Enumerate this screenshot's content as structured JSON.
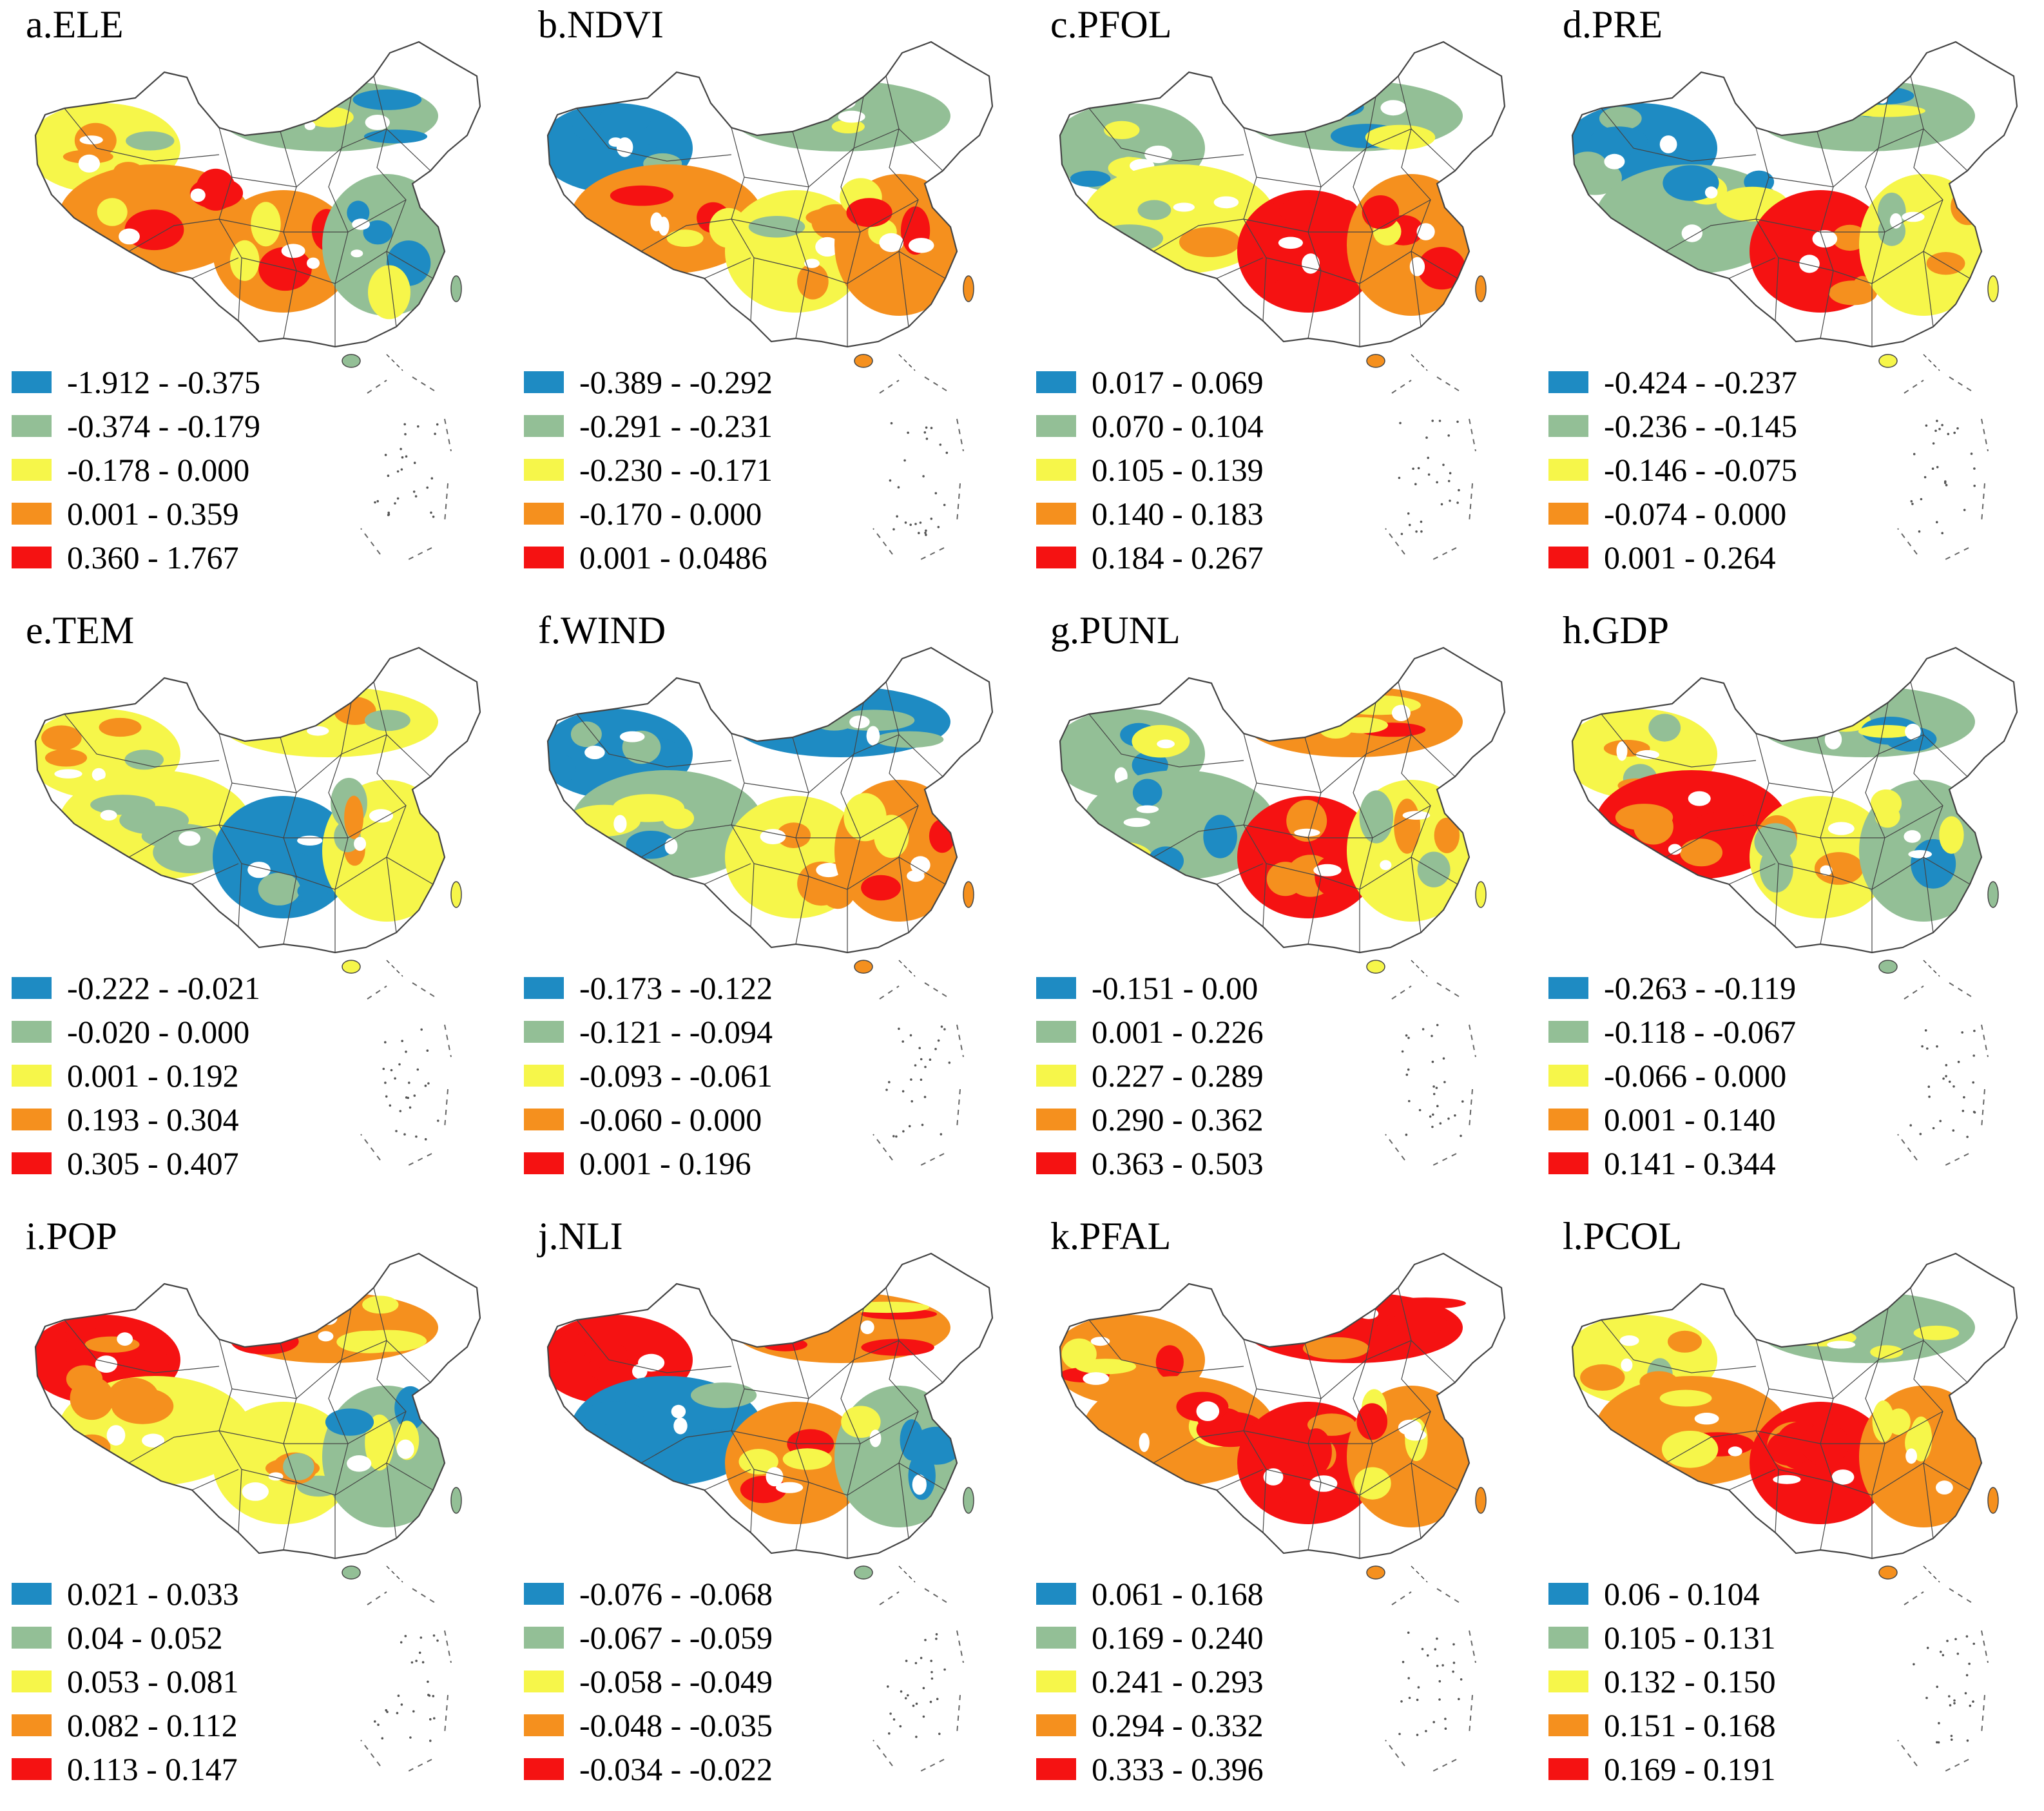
{
  "colors": {
    "class1": "#1e8bc3",
    "class2": "#93bf96",
    "class3": "#f6f64a",
    "class4": "#f5901e",
    "class5": "#f51212",
    "boundary": "#444444",
    "white": "#ffffff"
  },
  "panels": [
    {
      "title": "a.ELE",
      "pattern": [
        2,
        1,
        3,
        3,
        1
      ],
      "classes": [
        "-1.912 - -0.375",
        "-0.374 - -0.179",
        "-0.178 - 0.000",
        "0.001 - 0.359",
        "0.360 - 1.767"
      ]
    },
    {
      "title": "b.NDVI",
      "pattern": [
        0,
        1,
        3,
        2,
        3
      ],
      "classes": [
        "-0.389 - -0.292",
        "-0.291 - -0.231",
        "-0.230 - -0.171",
        "-0.170 - 0.000",
        "0.001 - 0.0486"
      ]
    },
    {
      "title": "c.PFOL",
      "pattern": [
        1,
        1,
        2,
        4,
        3
      ],
      "classes": [
        "0.017 - 0.069",
        "0.070 - 0.104",
        "0.105 - 0.139",
        "0.140 - 0.183",
        "0.184 - 0.267"
      ]
    },
    {
      "title": "d.PRE",
      "pattern": [
        0,
        1,
        1,
        4,
        2
      ],
      "classes": [
        "-0.424 - -0.237",
        "-0.236 - -0.145",
        "-0.146 - -0.075",
        "-0.074 - 0.000",
        "0.001 - 0.264"
      ]
    },
    {
      "title": "e.TEM",
      "pattern": [
        2,
        2,
        2,
        0,
        2
      ],
      "classes": [
        "-0.222 - -0.021",
        "-0.020 - 0.000",
        "0.001 - 0.192",
        "0.193 - 0.304",
        "0.305 - 0.407"
      ]
    },
    {
      "title": "f.WIND",
      "pattern": [
        0,
        0,
        1,
        2,
        3
      ],
      "classes": [
        "-0.173 - -0.122",
        "-0.121 - -0.094",
        "-0.093 - -0.061",
        "-0.060 - 0.000",
        "0.001 - 0.196"
      ]
    },
    {
      "title": "g.PUNL",
      "pattern": [
        1,
        3,
        1,
        4,
        2
      ],
      "classes": [
        "-0.151 - 0.00",
        "0.001 - 0.226",
        "0.227 - 0.289",
        "0.290 - 0.362",
        "0.363 - 0.503"
      ]
    },
    {
      "title": "h.GDP",
      "pattern": [
        2,
        1,
        4,
        2,
        1
      ],
      "classes": [
        "-0.263 - -0.119",
        "-0.118 - -0.067",
        "-0.066 - 0.000",
        "0.001 - 0.140",
        "0.141 - 0.344"
      ]
    },
    {
      "title": "i.POP",
      "pattern": [
        4,
        3,
        2,
        2,
        1
      ],
      "classes": [
        "0.021 - 0.033",
        "0.04 - 0.052",
        "0.053 - 0.081",
        "0.082 - 0.112",
        "0.113 - 0.147"
      ]
    },
    {
      "title": "j.NLI",
      "pattern": [
        4,
        3,
        0,
        3,
        1
      ],
      "classes": [
        "-0.076 - -0.068",
        "-0.067 - -0.059",
        "-0.058 - -0.049",
        "-0.048 - -0.035",
        "-0.034 - -0.022"
      ]
    },
    {
      "title": "k.PFAL",
      "pattern": [
        3,
        4,
        3,
        4,
        3
      ],
      "classes": [
        "0.061 - 0.168",
        "0.169 - 0.240",
        "0.241 - 0.293",
        "0.294 - 0.332",
        "0.333 - 0.396"
      ]
    },
    {
      "title": "l.PCOL",
      "pattern": [
        2,
        1,
        3,
        4,
        3
      ],
      "classes": [
        "0.06 - 0.104",
        "0.105 - 0.131",
        "0.132 - 0.150",
        "0.151 - 0.168",
        "0.169 - 0.191"
      ]
    }
  ]
}
